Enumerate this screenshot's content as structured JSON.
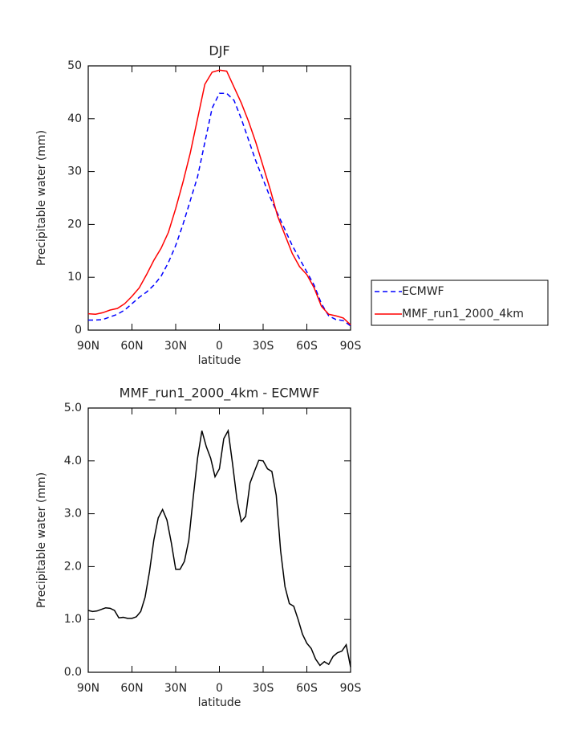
{
  "chart_data": [
    {
      "type": "line",
      "title": "DJF",
      "xlabel": "latitude",
      "ylabel": "Precipitable water (mm)",
      "x": [
        90,
        85,
        80,
        75,
        70,
        65,
        60,
        55,
        50,
        45,
        40,
        35,
        30,
        25,
        20,
        15,
        10,
        5,
        0,
        -5,
        -10,
        -15,
        -20,
        -25,
        -30,
        -35,
        -40,
        -45,
        -50,
        -55,
        -60,
        -65,
        -70,
        -75,
        -80,
        -85,
        -90
      ],
      "series": [
        {
          "name": "ECMWF",
          "color": "#0000ff",
          "dash": true,
          "values": [
            1.9,
            1.9,
            2.0,
            2.5,
            3.0,
            3.8,
            5.0,
            6.2,
            7.2,
            8.5,
            10.2,
            12.8,
            16,
            20,
            24.5,
            29,
            35.5,
            42,
            44.8,
            44.8,
            43.5,
            40,
            36,
            32,
            28.5,
            25,
            22,
            19,
            16,
            13.5,
            11,
            8.5,
            5,
            2.7,
            2.0,
            1.8,
            0.8
          ]
        },
        {
          "name": "MMF_run1_2000_4km",
          "color": "#ff0000",
          "dash": false,
          "values": [
            3.1,
            3.0,
            3.3,
            3.8,
            4.1,
            5.0,
            6.4,
            8.0,
            10.5,
            13.2,
            15.5,
            18.5,
            23,
            28,
            33.5,
            40,
            46.5,
            48.8,
            49.2,
            49,
            46,
            43,
            39.5,
            35.5,
            31,
            26.5,
            21.5,
            18,
            14.5,
            12,
            10.5,
            8,
            4.5,
            3,
            2.7,
            2.3,
            1.0
          ]
        }
      ],
      "xlim": [
        90,
        -90
      ],
      "xticks": [
        {
          "value": 90,
          "label": "90N"
        },
        {
          "value": 60,
          "label": "60N"
        },
        {
          "value": 30,
          "label": "30N"
        },
        0,
        {
          "value": -30,
          "label": "30S"
        },
        {
          "value": -60,
          "label": "60S"
        },
        {
          "value": -90,
          "label": "90S"
        }
      ],
      "ylim": [
        0,
        50
      ],
      "yticks": [
        0,
        10,
        20,
        30,
        40,
        50
      ],
      "legend": "right"
    },
    {
      "type": "line",
      "title": "MMF_run1_2000_4km - ECMWF",
      "xlabel": "latitude",
      "ylabel": "Precipitable water (mm)",
      "x": [
        90,
        87,
        84,
        81,
        78,
        75,
        72,
        69,
        66,
        63,
        60,
        57,
        54,
        51,
        48,
        45,
        42,
        39,
        36,
        33,
        30,
        27,
        24,
        21,
        18,
        15,
        12,
        9,
        6,
        3,
        0,
        -3,
        -6,
        -9,
        -12,
        -15,
        -18,
        -21,
        -24,
        -27,
        -30,
        -33,
        -36,
        -39,
        -42,
        -45,
        -48,
        -51,
        -54,
        -57,
        -60,
        -63,
        -66,
        -69,
        -72,
        -75,
        -78,
        -81,
        -84,
        -87,
        -90
      ],
      "series": [
        {
          "color": "#000000",
          "dash": false,
          "values": [
            1.17,
            1.15,
            1.16,
            1.19,
            1.22,
            1.21,
            1.17,
            1.03,
            1.04,
            1.02,
            1.02,
            1.05,
            1.15,
            1.42,
            1.9,
            2.5,
            2.92,
            3.08,
            2.88,
            2.45,
            1.95,
            1.95,
            2.1,
            2.5,
            3.3,
            4.05,
            4.57,
            4.27,
            4.05,
            3.7,
            3.85,
            4.42,
            4.57,
            3.95,
            3.28,
            2.85,
            2.95,
            3.58,
            3.8,
            4.01,
            4.0,
            3.85,
            3.8,
            3.35,
            2.3,
            1.62,
            1.3,
            1.25,
            1.0,
            0.72,
            0.55,
            0.45,
            0.25,
            0.13,
            0.2,
            0.15,
            0.3,
            0.37,
            0.4,
            0.52,
            0.1
          ]
        }
      ],
      "xlim": [
        90,
        -90
      ],
      "xticks": [
        {
          "value": 90,
          "label": "90N"
        },
        {
          "value": 60,
          "label": "60N"
        },
        {
          "value": 30,
          "label": "30N"
        },
        0,
        {
          "value": -30,
          "label": "30S"
        },
        {
          "value": -60,
          "label": "60S"
        },
        {
          "value": -90,
          "label": "90S"
        }
      ],
      "ylim": [
        0,
        5
      ],
      "yticks": [
        {
          "value": 0,
          "label": "0.0"
        },
        {
          "value": 1,
          "label": "1.0"
        },
        {
          "value": 2,
          "label": "2.0"
        },
        {
          "value": 3,
          "label": "3.0"
        },
        {
          "value": 4,
          "label": "4.0"
        },
        {
          "value": 5,
          "label": "5.0"
        }
      ]
    }
  ]
}
